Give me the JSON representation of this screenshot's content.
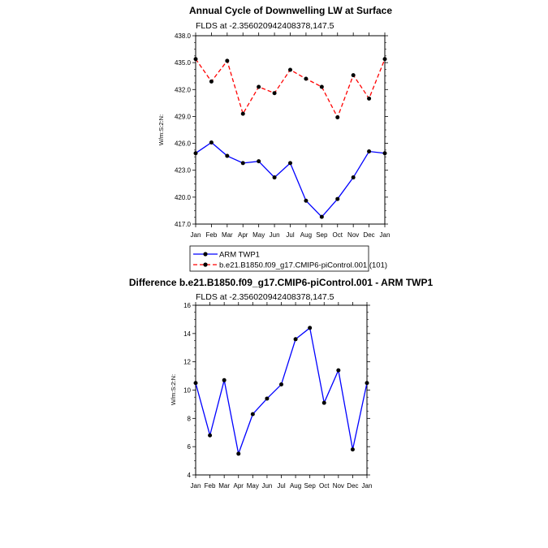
{
  "chart_data": [
    {
      "type": "line",
      "title": "Annual Cycle of Downwelling LW at Surface",
      "subtitle": "FLDS at -2.356020942408378,147.5",
      "ylabel": "W/m:S:2:N:",
      "ylim": [
        417.0,
        438.0
      ],
      "yticks": [
        "417.0",
        "420.0",
        "423.0",
        "426.0",
        "429.0",
        "432.0",
        "435.0",
        "438.0"
      ],
      "categories": [
        "Jan",
        "Feb",
        "Mar",
        "Apr",
        "May",
        "Jun",
        "Jul",
        "Aug",
        "Sep",
        "Oct",
        "Nov",
        "Dec",
        "Jan"
      ],
      "series": [
        {
          "name": "ARM TWP1",
          "color": "#0000ff",
          "dash": "solid",
          "values": [
            424.9,
            426.1,
            424.6,
            423.8,
            424.0,
            422.2,
            423.8,
            419.6,
            417.8,
            419.8,
            422.2,
            425.1,
            424.9
          ]
        },
        {
          "name": "b.e21.B1850.f09_g17.CMIP6-piControl.001 (101)",
          "color": "#ff0000",
          "dash": "dashed",
          "values": [
            435.4,
            432.9,
            435.2,
            429.3,
            432.3,
            431.6,
            434.2,
            433.2,
            432.3,
            428.9,
            433.6,
            431.0,
            435.4
          ]
        }
      ],
      "legend_placement": "bottom"
    },
    {
      "type": "line",
      "title": "Difference b.e21.B1850.f09_g17.CMIP6-piControl.001 - ARM TWP1",
      "subtitle": "FLDS at -2.356020942408378,147.5",
      "ylabel": "W/m:S:2:N:",
      "ylim": [
        4,
        16
      ],
      "yticks": [
        "4",
        "6",
        "8",
        "10",
        "12",
        "14",
        "16"
      ],
      "categories": [
        "Jan",
        "Feb",
        "Mar",
        "Apr",
        "May",
        "Jun",
        "Jul",
        "Aug",
        "Sep",
        "Oct",
        "Nov",
        "Dec",
        "Jan"
      ],
      "series": [
        {
          "color": "#0000ff",
          "dash": "solid",
          "values": [
            10.5,
            6.8,
            10.7,
            5.5,
            8.3,
            9.4,
            10.4,
            13.6,
            14.4,
            9.1,
            11.4,
            5.8,
            10.5
          ]
        }
      ]
    }
  ]
}
